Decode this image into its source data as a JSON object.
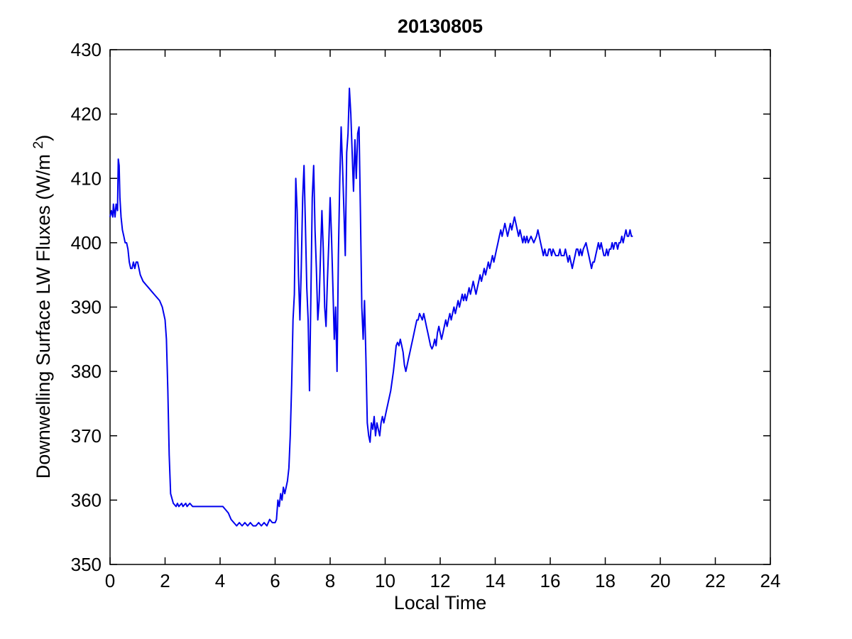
{
  "chart_data": {
    "type": "line",
    "title": "20130805",
    "xlabel": "Local Time",
    "ylabel_prefix": "Downwelling Surface LW Fluxes (W/m ",
    "ylabel_sup": "2",
    "ylabel_suffix": ")",
    "xlim": [
      0,
      24
    ],
    "ylim": [
      350,
      430
    ],
    "xticks": [
      0,
      2,
      4,
      6,
      8,
      10,
      12,
      14,
      16,
      18,
      20,
      22,
      24
    ],
    "yticks": [
      350,
      360,
      370,
      380,
      390,
      400,
      410,
      420,
      430
    ],
    "grid": false,
    "legend": "none",
    "line_color": "#0000ee",
    "axis_color": "#000000",
    "series": [
      {
        "name": "downwelling-surface-lw-flux",
        "points": [
          [
            0,
            404
          ],
          [
            0.05,
            405
          ],
          [
            0.1,
            404
          ],
          [
            0.12,
            406
          ],
          [
            0.18,
            404
          ],
          [
            0.22,
            406
          ],
          [
            0.27,
            405
          ],
          [
            0.3,
            413
          ],
          [
            0.33,
            412
          ],
          [
            0.36,
            407
          ],
          [
            0.4,
            404
          ],
          [
            0.45,
            402
          ],
          [
            0.5,
            401
          ],
          [
            0.55,
            400
          ],
          [
            0.6,
            400
          ],
          [
            0.65,
            399
          ],
          [
            0.7,
            397
          ],
          [
            0.75,
            396
          ],
          [
            0.8,
            396
          ],
          [
            0.85,
            397
          ],
          [
            0.9,
            396
          ],
          [
            0.95,
            397
          ],
          [
            1.0,
            397
          ],
          [
            1.05,
            396
          ],
          [
            1.1,
            395
          ],
          [
            1.2,
            394
          ],
          [
            1.3,
            393.5
          ],
          [
            1.4,
            393
          ],
          [
            1.5,
            392.5
          ],
          [
            1.6,
            392
          ],
          [
            1.7,
            391.5
          ],
          [
            1.8,
            391
          ],
          [
            1.9,
            390
          ],
          [
            2.0,
            388
          ],
          [
            2.05,
            385
          ],
          [
            2.1,
            377
          ],
          [
            2.15,
            367
          ],
          [
            2.2,
            361
          ],
          [
            2.3,
            359.5
          ],
          [
            2.4,
            359
          ],
          [
            2.45,
            359.5
          ],
          [
            2.5,
            359
          ],
          [
            2.6,
            359.5
          ],
          [
            2.65,
            359
          ],
          [
            2.75,
            359.5
          ],
          [
            2.8,
            359
          ],
          [
            2.9,
            359.5
          ],
          [
            3.0,
            359
          ],
          [
            3.2,
            359
          ],
          [
            3.4,
            359
          ],
          [
            3.6,
            359
          ],
          [
            3.8,
            359
          ],
          [
            4.0,
            359
          ],
          [
            4.1,
            359
          ],
          [
            4.2,
            358.5
          ],
          [
            4.3,
            358
          ],
          [
            4.4,
            357
          ],
          [
            4.5,
            356.5
          ],
          [
            4.6,
            356
          ],
          [
            4.7,
            356.5
          ],
          [
            4.8,
            356
          ],
          [
            4.9,
            356.5
          ],
          [
            5.0,
            356
          ],
          [
            5.1,
            356.5
          ],
          [
            5.2,
            356
          ],
          [
            5.3,
            356
          ],
          [
            5.4,
            356.5
          ],
          [
            5.5,
            356
          ],
          [
            5.6,
            356.5
          ],
          [
            5.7,
            356
          ],
          [
            5.8,
            357
          ],
          [
            5.9,
            356.5
          ],
          [
            6.0,
            356.5
          ],
          [
            6.05,
            357
          ],
          [
            6.1,
            360
          ],
          [
            6.15,
            359
          ],
          [
            6.2,
            361
          ],
          [
            6.25,
            360
          ],
          [
            6.3,
            362
          ],
          [
            6.35,
            361
          ],
          [
            6.4,
            362
          ],
          [
            6.45,
            363
          ],
          [
            6.5,
            365
          ],
          [
            6.55,
            370
          ],
          [
            6.6,
            378
          ],
          [
            6.65,
            388
          ],
          [
            6.7,
            392
          ],
          [
            6.72,
            399
          ],
          [
            6.75,
            410
          ],
          [
            6.8,
            405
          ],
          [
            6.85,
            395
          ],
          [
            6.9,
            388
          ],
          [
            6.95,
            396
          ],
          [
            7.0,
            407
          ],
          [
            7.05,
            412
          ],
          [
            7.1,
            403
          ],
          [
            7.15,
            393
          ],
          [
            7.2,
            388
          ],
          [
            7.25,
            377
          ],
          [
            7.3,
            392
          ],
          [
            7.35,
            407
          ],
          [
            7.4,
            412
          ],
          [
            7.45,
            402
          ],
          [
            7.5,
            396
          ],
          [
            7.55,
            388
          ],
          [
            7.6,
            391
          ],
          [
            7.65,
            398
          ],
          [
            7.7,
            405
          ],
          [
            7.75,
            399
          ],
          [
            7.8,
            390
          ],
          [
            7.85,
            387
          ],
          [
            7.9,
            394
          ],
          [
            7.95,
            400
          ],
          [
            8.0,
            407
          ],
          [
            8.05,
            401
          ],
          [
            8.1,
            393
          ],
          [
            8.15,
            385
          ],
          [
            8.2,
            390
          ],
          [
            8.25,
            380
          ],
          [
            8.3,
            398
          ],
          [
            8.35,
            410
          ],
          [
            8.4,
            418
          ],
          [
            8.45,
            412
          ],
          [
            8.5,
            405
          ],
          [
            8.55,
            398
          ],
          [
            8.6,
            414
          ],
          [
            8.65,
            417
          ],
          [
            8.7,
            424
          ],
          [
            8.75,
            420
          ],
          [
            8.8,
            414
          ],
          [
            8.85,
            408
          ],
          [
            8.9,
            416
          ],
          [
            8.95,
            410
          ],
          [
            9.0,
            417
          ],
          [
            9.05,
            418
          ],
          [
            9.1,
            405
          ],
          [
            9.15,
            390
          ],
          [
            9.2,
            385
          ],
          [
            9.25,
            391
          ],
          [
            9.3,
            382
          ],
          [
            9.35,
            372
          ],
          [
            9.4,
            370
          ],
          [
            9.45,
            369
          ],
          [
            9.5,
            372
          ],
          [
            9.55,
            371
          ],
          [
            9.6,
            373
          ],
          [
            9.65,
            370
          ],
          [
            9.7,
            372
          ],
          [
            9.75,
            371
          ],
          [
            9.8,
            370
          ],
          [
            9.85,
            372
          ],
          [
            9.9,
            373
          ],
          [
            9.95,
            372
          ],
          [
            10.0,
            373
          ],
          [
            10.05,
            374
          ],
          [
            10.1,
            375
          ],
          [
            10.2,
            377
          ],
          [
            10.3,
            380
          ],
          [
            10.35,
            382
          ],
          [
            10.4,
            384
          ],
          [
            10.45,
            384.5
          ],
          [
            10.5,
            384
          ],
          [
            10.55,
            385
          ],
          [
            10.6,
            384
          ],
          [
            10.65,
            383
          ],
          [
            10.7,
            381
          ],
          [
            10.75,
            380
          ],
          [
            10.8,
            381
          ],
          [
            10.85,
            382
          ],
          [
            10.9,
            383
          ],
          [
            10.95,
            384
          ],
          [
            11.0,
            385
          ],
          [
            11.05,
            386
          ],
          [
            11.1,
            387
          ],
          [
            11.15,
            388
          ],
          [
            11.2,
            388
          ],
          [
            11.25,
            389
          ],
          [
            11.3,
            388.5
          ],
          [
            11.35,
            388
          ],
          [
            11.4,
            389
          ],
          [
            11.45,
            388
          ],
          [
            11.5,
            387
          ],
          [
            11.55,
            386
          ],
          [
            11.6,
            385
          ],
          [
            11.65,
            384
          ],
          [
            11.7,
            383.5
          ],
          [
            11.75,
            384
          ],
          [
            11.8,
            385
          ],
          [
            11.85,
            384
          ],
          [
            11.9,
            386
          ],
          [
            11.95,
            387
          ],
          [
            12.0,
            386
          ],
          [
            12.05,
            385
          ],
          [
            12.1,
            386
          ],
          [
            12.15,
            387
          ],
          [
            12.2,
            388
          ],
          [
            12.25,
            387
          ],
          [
            12.3,
            388
          ],
          [
            12.35,
            389
          ],
          [
            12.4,
            388
          ],
          [
            12.45,
            389
          ],
          [
            12.5,
            390
          ],
          [
            12.55,
            389
          ],
          [
            12.6,
            390
          ],
          [
            12.65,
            391
          ],
          [
            12.7,
            390
          ],
          [
            12.75,
            391
          ],
          [
            12.8,
            392
          ],
          [
            12.85,
            391
          ],
          [
            12.9,
            392
          ],
          [
            12.95,
            391
          ],
          [
            13.0,
            392
          ],
          [
            13.05,
            393
          ],
          [
            13.1,
            392
          ],
          [
            13.15,
            393
          ],
          [
            13.2,
            394
          ],
          [
            13.25,
            393
          ],
          [
            13.3,
            392
          ],
          [
            13.35,
            393
          ],
          [
            13.4,
            394
          ],
          [
            13.45,
            395
          ],
          [
            13.5,
            394
          ],
          [
            13.55,
            395
          ],
          [
            13.6,
            396
          ],
          [
            13.65,
            395
          ],
          [
            13.7,
            396
          ],
          [
            13.75,
            397
          ],
          [
            13.8,
            396
          ],
          [
            13.85,
            397
          ],
          [
            13.9,
            398
          ],
          [
            13.95,
            397
          ],
          [
            14.0,
            398
          ],
          [
            14.05,
            399
          ],
          [
            14.1,
            400
          ],
          [
            14.15,
            401
          ],
          [
            14.2,
            402
          ],
          [
            14.25,
            401
          ],
          [
            14.3,
            402
          ],
          [
            14.35,
            403
          ],
          [
            14.4,
            402
          ],
          [
            14.45,
            401
          ],
          [
            14.5,
            402
          ],
          [
            14.55,
            403
          ],
          [
            14.6,
            402
          ],
          [
            14.65,
            403
          ],
          [
            14.7,
            404
          ],
          [
            14.75,
            403
          ],
          [
            14.8,
            402
          ],
          [
            14.85,
            401
          ],
          [
            14.9,
            402
          ],
          [
            14.95,
            401
          ],
          [
            15.0,
            400
          ],
          [
            15.05,
            401
          ],
          [
            15.1,
            400
          ],
          [
            15.15,
            401
          ],
          [
            15.2,
            400
          ],
          [
            15.3,
            401
          ],
          [
            15.4,
            400
          ],
          [
            15.5,
            401
          ],
          [
            15.55,
            402
          ],
          [
            15.6,
            401
          ],
          [
            15.65,
            400
          ],
          [
            15.7,
            399
          ],
          [
            15.75,
            398
          ],
          [
            15.8,
            399
          ],
          [
            15.85,
            398
          ],
          [
            15.9,
            398
          ],
          [
            15.95,
            399
          ],
          [
            16.0,
            399
          ],
          [
            16.05,
            398
          ],
          [
            16.1,
            399
          ],
          [
            16.2,
            398
          ],
          [
            16.3,
            398
          ],
          [
            16.35,
            399
          ],
          [
            16.4,
            398
          ],
          [
            16.5,
            398
          ],
          [
            16.55,
            399
          ],
          [
            16.6,
            398
          ],
          [
            16.65,
            397
          ],
          [
            16.7,
            398
          ],
          [
            16.75,
            397
          ],
          [
            16.8,
            396
          ],
          [
            16.85,
            397
          ],
          [
            16.9,
            398
          ],
          [
            16.95,
            399
          ],
          [
            17.0,
            399
          ],
          [
            17.05,
            398
          ],
          [
            17.1,
            399
          ],
          [
            17.15,
            398
          ],
          [
            17.2,
            399
          ],
          [
            17.3,
            400
          ],
          [
            17.35,
            399
          ],
          [
            17.4,
            398
          ],
          [
            17.45,
            397
          ],
          [
            17.5,
            396
          ],
          [
            17.55,
            397
          ],
          [
            17.6,
            397
          ],
          [
            17.65,
            398
          ],
          [
            17.7,
            399
          ],
          [
            17.75,
            400
          ],
          [
            17.8,
            399
          ],
          [
            17.85,
            400
          ],
          [
            17.9,
            399
          ],
          [
            17.95,
            398
          ],
          [
            18.0,
            398
          ],
          [
            18.05,
            399
          ],
          [
            18.1,
            398
          ],
          [
            18.15,
            399
          ],
          [
            18.2,
            399
          ],
          [
            18.25,
            400
          ],
          [
            18.3,
            399
          ],
          [
            18.35,
            400
          ],
          [
            18.4,
            400
          ],
          [
            18.45,
            399
          ],
          [
            18.5,
            400
          ],
          [
            18.55,
            400
          ],
          [
            18.6,
            401
          ],
          [
            18.65,
            400
          ],
          [
            18.7,
            401
          ],
          [
            18.75,
            402
          ],
          [
            18.8,
            401
          ],
          [
            18.85,
            401
          ],
          [
            18.9,
            402
          ],
          [
            18.95,
            401
          ],
          [
            19.0,
            401
          ]
        ]
      }
    ]
  }
}
